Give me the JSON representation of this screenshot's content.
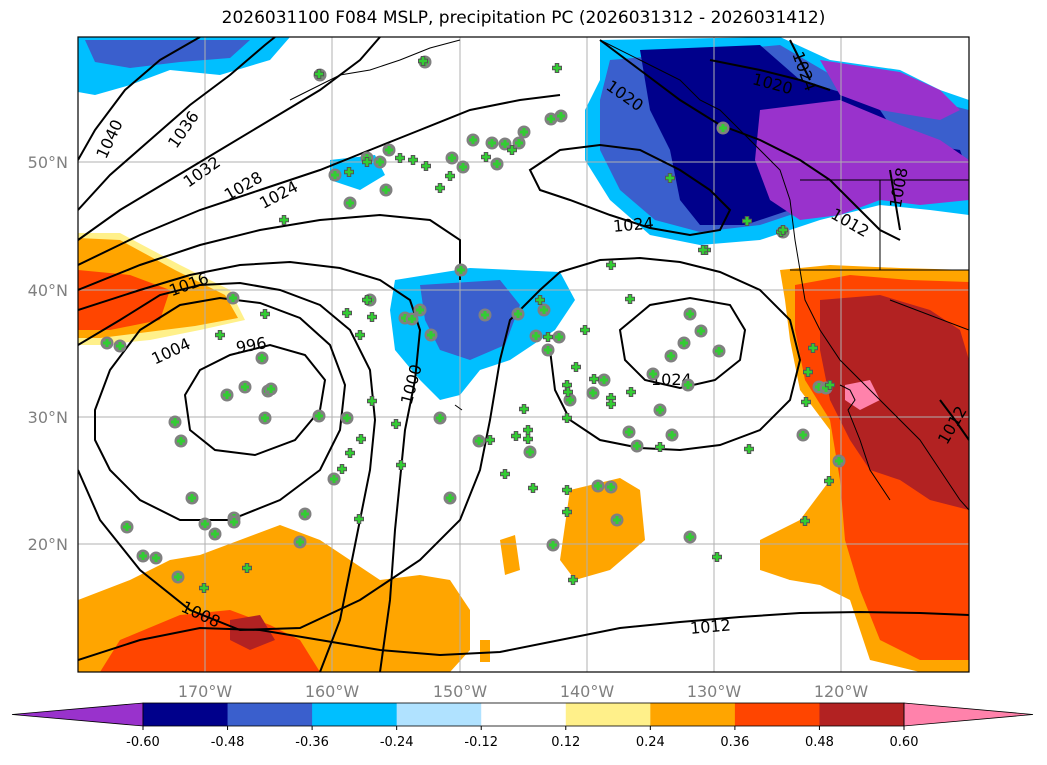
{
  "title": "2026031100 F084 MSLP, precipitation PC (2026031312 - 2026031412)",
  "map": {
    "lat_labels": [
      "50°N",
      "40°N",
      "30°N",
      "20°N"
    ],
    "lon_labels": [
      "170°W",
      "160°W",
      "150°W",
      "140°W",
      "130°W",
      "120°W"
    ],
    "isobar_labels": [
      "1040",
      "1036",
      "1032",
      "1028",
      "1024",
      "1016",
      "1004",
      "996",
      "1000",
      "1024",
      "1024",
      "1012",
      "1008",
      "1020",
      "1020",
      "1024",
      "1012",
      "1008",
      "1012"
    ],
    "colors": {
      "strong_neg": "#9932cc",
      "neg_048": "#00008b",
      "neg_036": "#3a5fcd",
      "neg_024": "#00bfff",
      "neg_012": "#b0e2ff",
      "pos_012": "#fff08a",
      "pos_024": "#ffa500",
      "pos_036": "#ff4500",
      "pos_048": "#b22222",
      "pos_060": "#ff82ab",
      "station_marker": "#32cd32",
      "station_ring": "#808080"
    }
  },
  "colorbar": {
    "ticks": [
      "-0.60",
      "-0.48",
      "-0.36",
      "-0.24",
      "-0.12",
      "0.12",
      "0.24",
      "0.36",
      "0.48",
      "0.60"
    ],
    "colors": [
      "#9932cc",
      "#00008b",
      "#3a5fcd",
      "#00bfff",
      "#b0e2ff",
      "#ffffff",
      "#fff08a",
      "#ffa500",
      "#ff4500",
      "#b22222",
      "#ff82ab"
    ]
  }
}
